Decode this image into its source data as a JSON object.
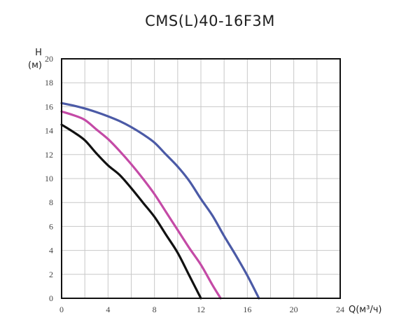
{
  "chart_data": {
    "type": "line",
    "title": "CMS(L)40-16F3M",
    "xlabel": "Q(м³/ч)",
    "ylabel_line1": "H",
    "ylabel_line2": "(м)",
    "xlim": [
      0,
      24
    ],
    "ylim": [
      0,
      20
    ],
    "xticks": [
      "0",
      "4",
      "8",
      "12",
      "16",
      "20",
      "24"
    ],
    "yticks": [
      "0",
      "2",
      "4",
      "6",
      "8",
      "10",
      "12",
      "14",
      "16",
      "18",
      "20"
    ],
    "grid": true,
    "series": [
      {
        "color": "#4b5aa6",
        "x": [
          0,
          1,
          2,
          3,
          4,
          5,
          6,
          7,
          8,
          9,
          10,
          11,
          12,
          13,
          14,
          15,
          16,
          17
        ],
        "y": [
          16.3,
          16.1,
          15.85,
          15.55,
          15.2,
          14.8,
          14.3,
          13.7,
          13.0,
          12.0,
          11.0,
          9.8,
          8.3,
          6.9,
          5.2,
          3.6,
          1.9,
          0
        ]
      },
      {
        "color": "#c44aa6",
        "x": [
          0,
          1,
          2,
          3,
          4,
          5,
          6,
          7,
          8,
          9,
          10,
          11,
          12,
          13,
          13.7
        ],
        "y": [
          15.6,
          15.3,
          14.9,
          14.1,
          13.3,
          12.3,
          11.2,
          10.0,
          8.7,
          7.2,
          5.7,
          4.2,
          2.8,
          1.1,
          0
        ]
      },
      {
        "color": "#111111",
        "x": [
          0,
          1,
          2,
          3,
          4,
          5,
          6,
          7,
          8,
          9,
          10,
          11,
          12
        ],
        "y": [
          14.5,
          13.9,
          13.2,
          12.1,
          11.1,
          10.3,
          9.2,
          8.0,
          6.8,
          5.3,
          3.8,
          1.9,
          0
        ]
      }
    ]
  }
}
